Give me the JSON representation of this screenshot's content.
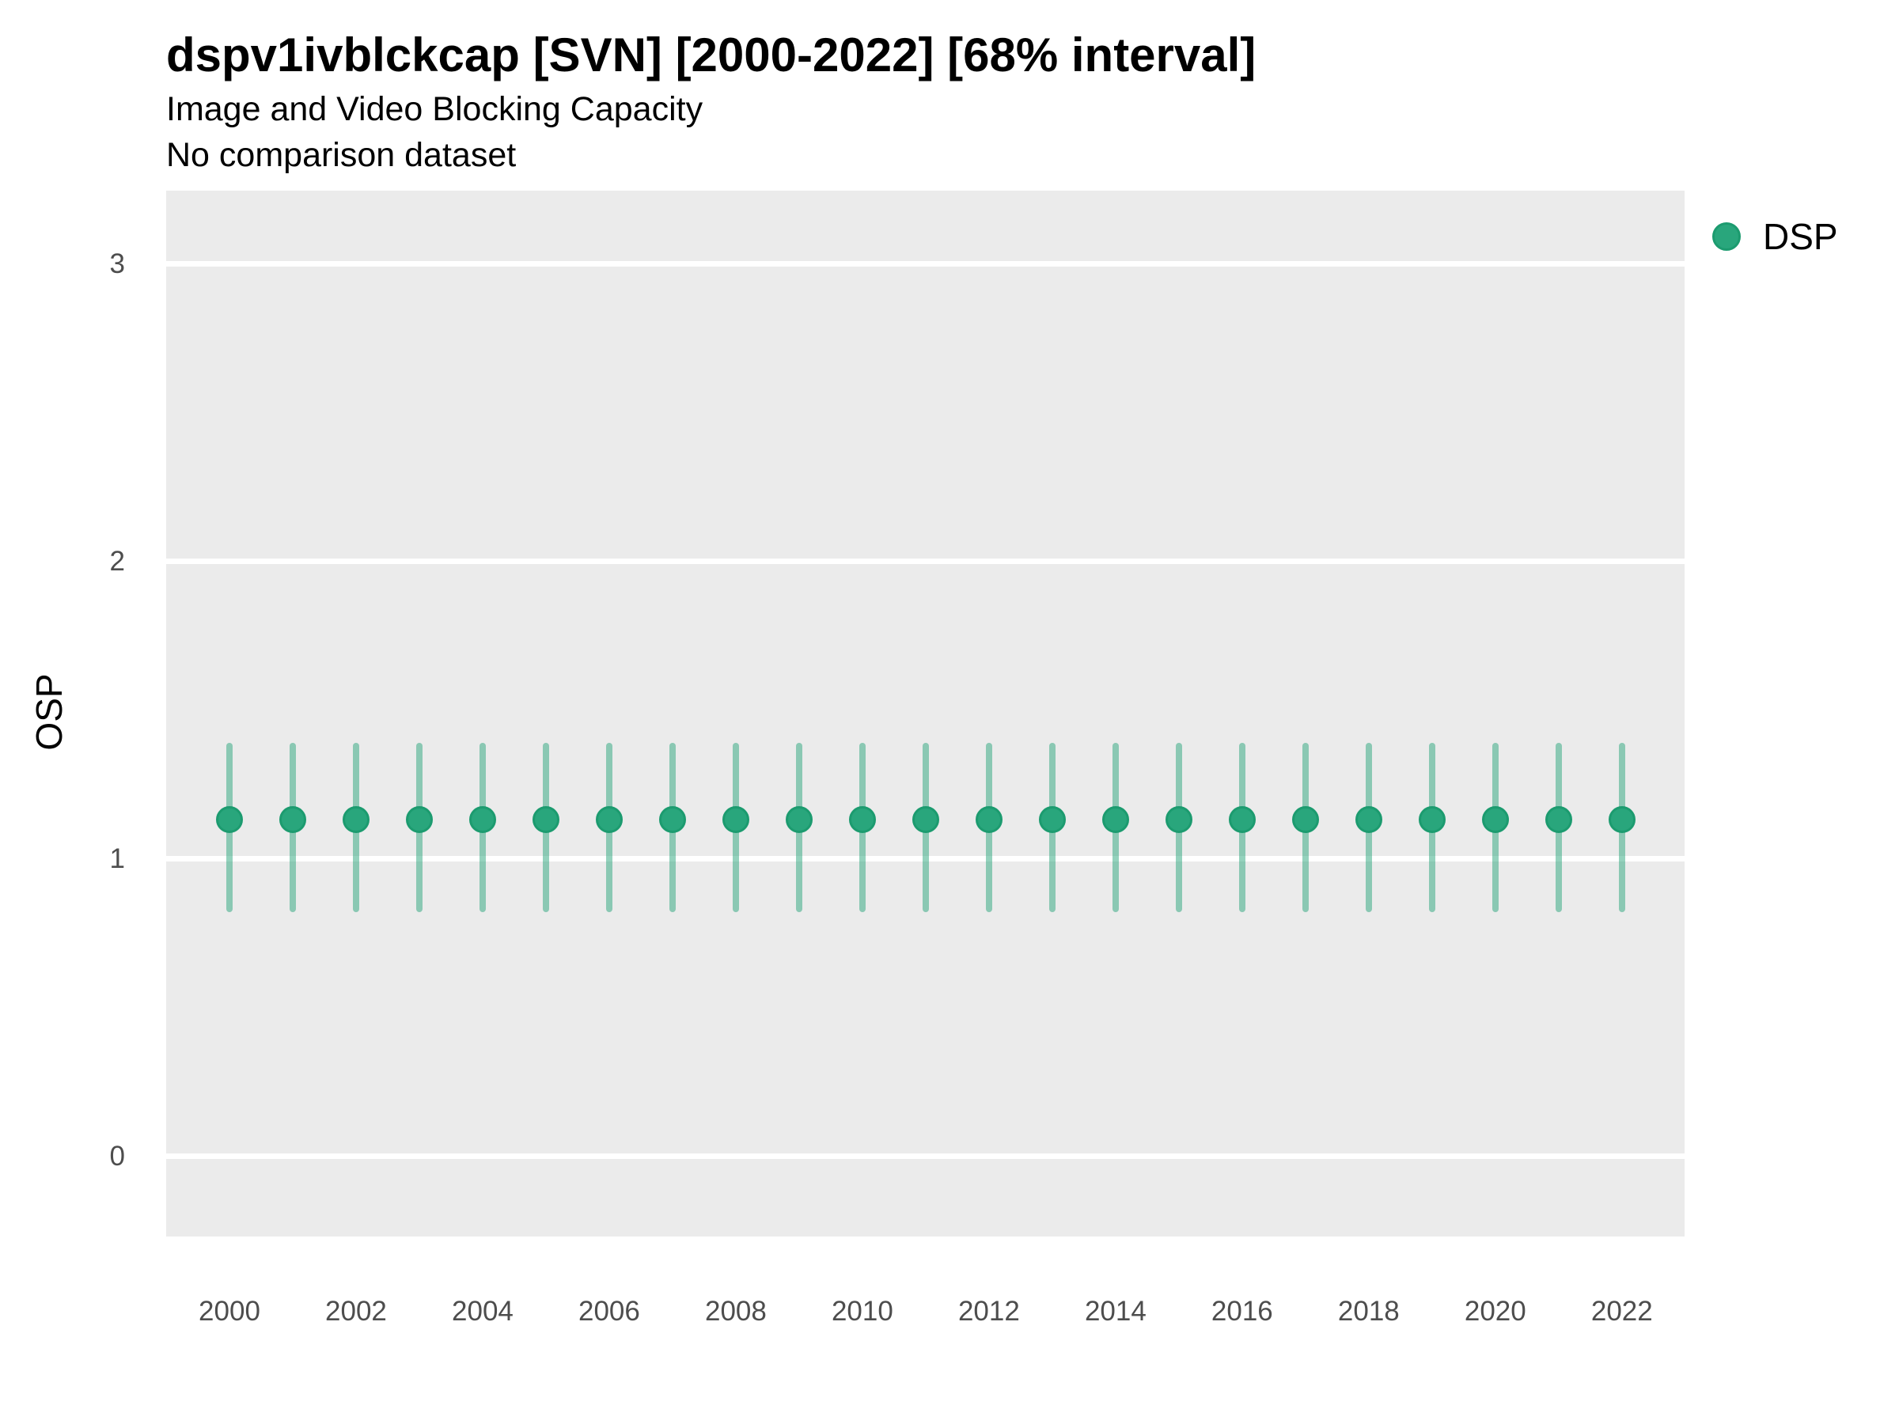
{
  "header": {
    "title": "dspv1ivblckcap [SVN] [2000-2022] [68% interval]",
    "subtitle": "Image and Video Blocking Capacity",
    "note": "No comparison dataset"
  },
  "y_axis": {
    "label": "OSP"
  },
  "legend": {
    "label": "DSP"
  },
  "colors": {
    "point_fill": "#29A67C",
    "point_stroke": "#1C9B6F",
    "interval_bar": "rgba(41,166,124,0.5)",
    "panel_background": "#EBEBEB",
    "gridline": "#FFFFFF",
    "tick_text": "#4D4D4D",
    "text": "#000000"
  },
  "chart_data": {
    "type": "scatter",
    "subtype": "pointrange",
    "title": "dspv1ivblckcap [SVN] [2000-2022] [68% interval]",
    "subtitle": "Image and Video Blocking Capacity",
    "note": "No comparison dataset",
    "interval": "68%",
    "xlabel": "",
    "ylabel": "OSP",
    "legend_position": "right-top",
    "legend_entries": [
      {
        "label": "DSP",
        "color": "#29A67C"
      }
    ],
    "grid": "major-y-only",
    "xlim": [
      1999.0,
      2022.99
    ],
    "ylim": [
      -0.27,
      3.245
    ],
    "yticks": [
      3,
      2,
      1,
      0
    ],
    "xticks": [
      2000,
      2002,
      2004,
      2006,
      2008,
      2010,
      2012,
      2014,
      2016,
      2018,
      2020,
      2022
    ],
    "series": [
      {
        "name": "DSP",
        "x": [
          2000,
          2001,
          2002,
          2003,
          2004,
          2005,
          2006,
          2007,
          2008,
          2009,
          2010,
          2011,
          2012,
          2013,
          2014,
          2015,
          2016,
          2017,
          2018,
          2019,
          2020,
          2021,
          2022
        ],
        "mid": [
          1.13,
          1.13,
          1.13,
          1.13,
          1.13,
          1.13,
          1.13,
          1.13,
          1.13,
          1.13,
          1.13,
          1.13,
          1.13,
          1.13,
          1.13,
          1.13,
          1.13,
          1.13,
          1.13,
          1.13,
          1.13,
          1.13,
          1.13
        ],
        "low": [
          0.82,
          0.82,
          0.82,
          0.82,
          0.82,
          0.82,
          0.82,
          0.82,
          0.82,
          0.82,
          0.82,
          0.82,
          0.82,
          0.82,
          0.82,
          0.82,
          0.82,
          0.82,
          0.82,
          0.82,
          0.82,
          0.82,
          0.82
        ],
        "high": [
          1.39,
          1.39,
          1.39,
          1.39,
          1.39,
          1.39,
          1.39,
          1.39,
          1.39,
          1.39,
          1.39,
          1.39,
          1.39,
          1.39,
          1.39,
          1.39,
          1.39,
          1.39,
          1.39,
          1.39,
          1.39,
          1.39,
          1.39
        ]
      }
    ]
  }
}
